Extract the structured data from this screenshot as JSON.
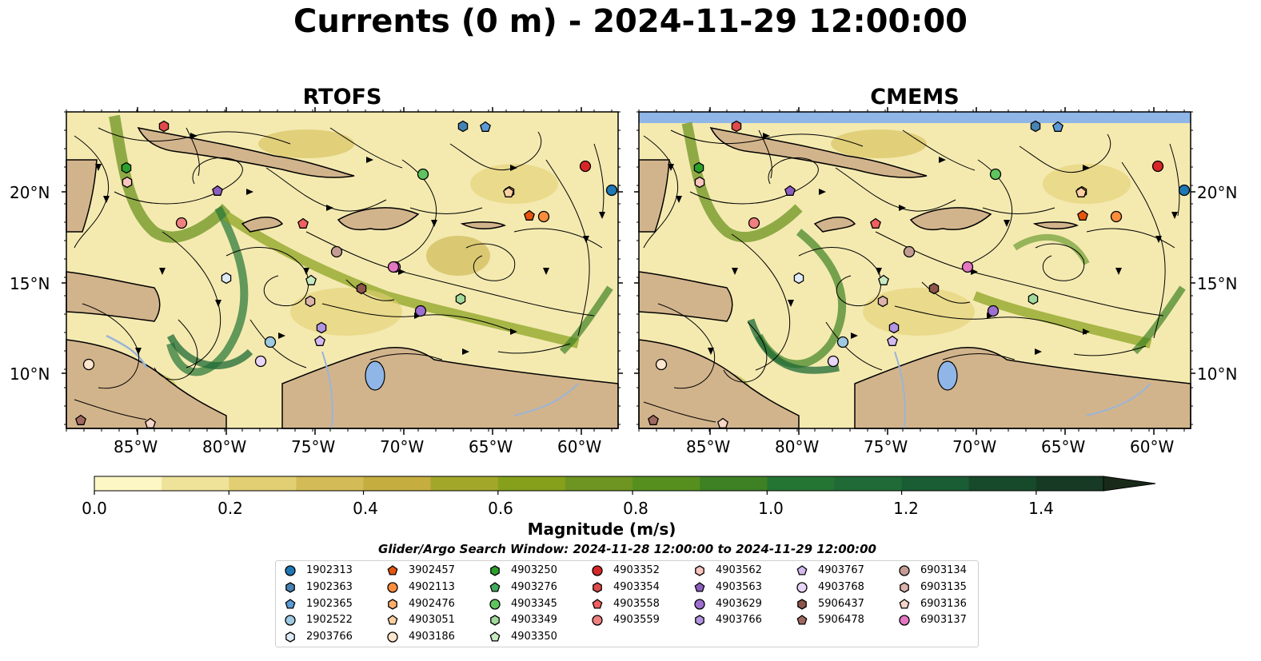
{
  "title": "Currents (0 m) - 2024-11-29 12:00:00",
  "panels": [
    {
      "title": "RTOFS"
    },
    {
      "title": "CMEMS"
    }
  ],
  "lon_labels": [
    "85°W",
    "80°W",
    "75°W",
    "70°W",
    "65°W",
    "60°W"
  ],
  "lat_labels": [
    "20°N",
    "15°N",
    "10°N"
  ],
  "colorbar": {
    "title": "Magnitude (m/s)",
    "tick_labels": [
      "0.0",
      "0.2",
      "0.4",
      "0.6",
      "0.8",
      "1.0",
      "1.2",
      "1.4"
    ],
    "min": 0.0,
    "max": 1.5,
    "step": 0.1,
    "extend": "max",
    "colors": [
      "#fdf7c5",
      "#efe39a",
      "#e2cf73",
      "#d3bc57",
      "#c5ad40",
      "#a2a72a",
      "#86a01b",
      "#6e9422",
      "#578f1f",
      "#3e8124",
      "#247534",
      "#1f6a36",
      "#1a5c33",
      "#174a2b",
      "#163a24",
      "#1a2a1a"
    ]
  },
  "colors": {
    "land": "#d2b48c",
    "water_fill": "#8fb6e6",
    "river": "#9bb4d6"
  },
  "search_window": "Glider/Argo Search Window: 2024-11-28 12:00:00 to 2024-11-29 12:00:00",
  "floats": [
    {
      "id": "1902313",
      "marker": "circle",
      "color": "#1f77b4"
    },
    {
      "id": "1902363",
      "marker": "hexagon",
      "color": "#4682b4"
    },
    {
      "id": "1902365",
      "marker": "pentagon",
      "color": "#5b9bd5"
    },
    {
      "id": "1902522",
      "marker": "circle",
      "color": "#9ecae1"
    },
    {
      "id": "2903766",
      "marker": "hexagon",
      "color": "#deebf7"
    },
    {
      "id": "3902457",
      "marker": "pentagon",
      "color": "#e6550d"
    },
    {
      "id": "4902113",
      "marker": "circle",
      "color": "#fd8d3c"
    },
    {
      "id": "4902476",
      "marker": "hexagon",
      "color": "#fdae6b"
    },
    {
      "id": "4903051",
      "marker": "pentagon",
      "color": "#fdd0a2"
    },
    {
      "id": "4903186",
      "marker": "circle",
      "color": "#fee6ce"
    },
    {
      "id": "4903250",
      "marker": "hexagon",
      "color": "#2ca02c"
    },
    {
      "id": "4903276",
      "marker": "pentagon",
      "color": "#41ab5d"
    },
    {
      "id": "4903345",
      "marker": "circle",
      "color": "#5fc45f"
    },
    {
      "id": "4903349",
      "marker": "hexagon",
      "color": "#a1d99b"
    },
    {
      "id": "4903350",
      "marker": "pentagon",
      "color": "#c7e9c0"
    },
    {
      "id": "4903352",
      "marker": "circle",
      "color": "#d62728"
    },
    {
      "id": "4903354",
      "marker": "hexagon",
      "color": "#e04a4a"
    },
    {
      "id": "4903558",
      "marker": "pentagon",
      "color": "#f06060"
    },
    {
      "id": "4903559",
      "marker": "circle",
      "color": "#f08080"
    },
    {
      "id": "4903562",
      "marker": "hexagon",
      "color": "#fcc5c0"
    },
    {
      "id": "4903563",
      "marker": "pentagon",
      "color": "#8c5fbf"
    },
    {
      "id": "4903629",
      "marker": "circle",
      "color": "#9e6fd0"
    },
    {
      "id": "4903766",
      "marker": "hexagon",
      "color": "#b294e0"
    },
    {
      "id": "4903767",
      "marker": "pentagon",
      "color": "#d4b9f0"
    },
    {
      "id": "4903768",
      "marker": "circle",
      "color": "#e9d6f7"
    },
    {
      "id": "5906437",
      "marker": "hexagon",
      "color": "#8c564b"
    },
    {
      "id": "5906478",
      "marker": "pentagon",
      "color": "#a0695f"
    },
    {
      "id": "6903134",
      "marker": "circle",
      "color": "#c49c94"
    },
    {
      "id": "6903135",
      "marker": "hexagon",
      "color": "#dbb3aa"
    },
    {
      "id": "6903136",
      "marker": "pentagon",
      "color": "#f7d5c8"
    },
    {
      "id": "6903137",
      "marker": "circle",
      "color": "#e377c2"
    }
  ]
}
